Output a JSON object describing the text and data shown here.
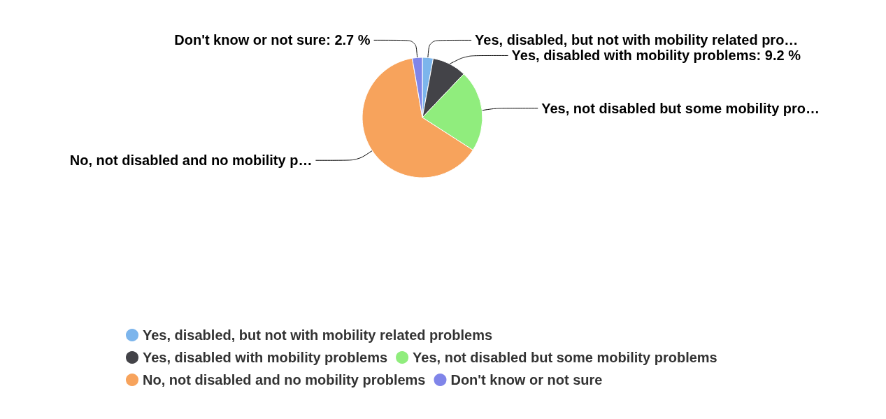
{
  "chart_data": {
    "type": "pie",
    "categories": [
      "Yes, disabled, but not with mobility related problems",
      "Yes, disabled with mobility problems",
      "Yes, not disabled but some mobility problems",
      "No, not disabled and no mobility problems",
      "Don't know or not sure"
    ],
    "values": [
      2.9,
      9.2,
      22.0,
      63.2,
      2.7
    ],
    "colors": [
      "#7cb5ec",
      "#434348",
      "#90ed7d",
      "#f7a35c",
      "#8085e9"
    ],
    "value_labels": [
      "Yes, disabled, but not with mobility related pro…",
      "Yes, disabled with mobility problems: 9.2 %",
      "Yes, not disabled but some mobility pro…",
      "No, not disabled and no mobility p…",
      "Don't know or not sure: 2.7 %"
    ],
    "legend": "bottom"
  }
}
